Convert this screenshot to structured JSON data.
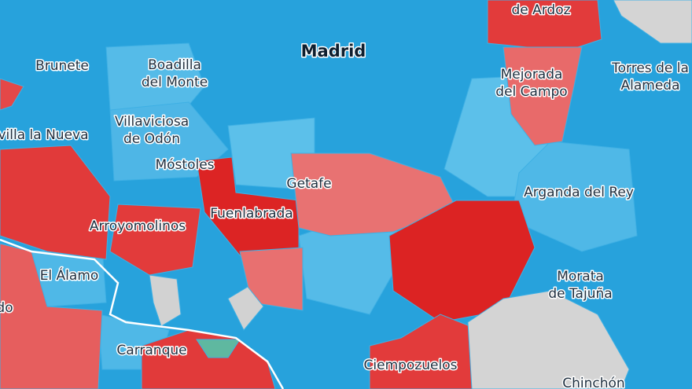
{
  "labels": [
    {
      "lines": [
        "de Ardoz"
      ]
    },
    {
      "lines": [
        "Madrid"
      ]
    },
    {
      "lines": [
        "Brunete"
      ]
    },
    {
      "lines": [
        "Boadilla",
        "del Monte"
      ]
    },
    {
      "lines": [
        "Torres de la",
        "Alameda"
      ]
    },
    {
      "lines": [
        "Mejorada",
        "del Campo"
      ]
    },
    {
      "lines": [
        "Villaviciosa",
        "de Odón"
      ]
    },
    {
      "lines": [
        "villa la Nueva"
      ]
    },
    {
      "lines": [
        "Móstoles"
      ]
    },
    {
      "lines": [
        "Getafe"
      ]
    },
    {
      "lines": [
        "Arganda del Rey"
      ]
    },
    {
      "lines": [
        "Fuenlabrada"
      ]
    },
    {
      "lines": [
        "Arroyomolinos"
      ]
    },
    {
      "lines": [
        "El Álamo"
      ]
    },
    {
      "lines": [
        "Morata",
        "de Tajuña"
      ]
    },
    {
      "lines": [
        "do"
      ]
    },
    {
      "lines": [
        "Carranque"
      ]
    },
    {
      "lines": [
        "Ciempozuelos"
      ]
    },
    {
      "lines": [
        "Chinchón"
      ]
    }
  ]
}
